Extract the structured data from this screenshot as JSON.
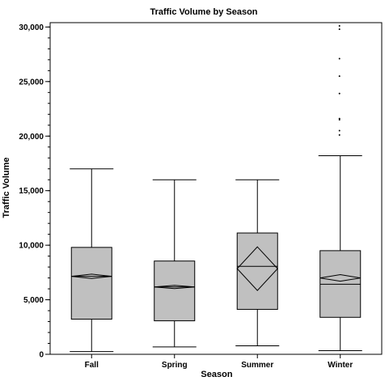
{
  "chart_data": {
    "type": "box",
    "title": "Traffic Volume by Season",
    "xlabel": "Season",
    "ylabel": "Traffic Volume",
    "ylim": [
      0,
      30400
    ],
    "y_ticks": [
      {
        "value": 0,
        "label": "0"
      },
      {
        "value": 5000,
        "label": "5,000"
      },
      {
        "value": 10000,
        "label": "10,000"
      },
      {
        "value": 15000,
        "label": "15,000"
      },
      {
        "value": 20000,
        "label": "20,000"
      },
      {
        "value": 25000,
        "label": "25,000"
      },
      {
        "value": 30000,
        "label": "30,000"
      }
    ],
    "y_minor_step": 1000,
    "categories": [
      "Fall",
      "Spring",
      "Summer",
      "Winter"
    ],
    "boxes": [
      {
        "category": "Fall",
        "whisker_low": 250,
        "q1": 3220,
        "median": 7150,
        "q3": 9800,
        "whisker_high": 17000,
        "mean": 7150,
        "mean_halfwidth": 200,
        "outliers": []
      },
      {
        "category": "Spring",
        "whisker_low": 680,
        "q1": 3070,
        "median": 6170,
        "q3": 8550,
        "whisker_high": 16000,
        "mean": 6170,
        "mean_halfwidth": 150,
        "outliers": []
      },
      {
        "category": "Summer",
        "whisker_low": 780,
        "q1": 4120,
        "median": 8060,
        "q3": 11120,
        "whisker_high": 16000,
        "mean": 7850,
        "mean_halfwidth": 2000,
        "outliers": []
      },
      {
        "category": "Winter",
        "whisker_low": 330,
        "q1": 3390,
        "median": 6420,
        "q3": 9500,
        "whisker_high": 18200,
        "mean": 7000,
        "mean_halfwidth": 300,
        "outliers": [
          20100,
          20500,
          21500,
          21600,
          23900,
          25500,
          27100,
          29800,
          30100
        ]
      }
    ],
    "box_fill": "#c0c0c0",
    "line_color": "#000000",
    "grid": false,
    "legend": "none"
  }
}
